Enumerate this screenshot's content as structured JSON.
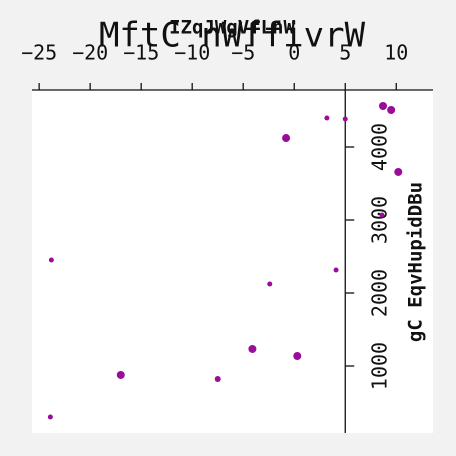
{
  "chart_data": {
    "type": "scatter",
    "title": "MftC nWffivrW",
    "x_label": "IZqJWgVfLnW",
    "y_label": "gC EqvHupidDBu",
    "x": [
      8.7,
      9.5,
      3.2,
      5.0,
      -0.8,
      10.2,
      8.6,
      -23.8,
      4.1,
      -2.4,
      -4.1,
      0.3,
      -17.0,
      -7.5,
      -23.9
    ],
    "y": [
      4562,
      4507,
      4397,
      4384,
      4123,
      3658,
      3068,
      2452,
      2315,
      2123,
      1233,
      1137,
      877,
      822,
      301
    ],
    "sizes": [
      4,
      4,
      2.5,
      2.5,
      4,
      4,
      2.5,
      2.5,
      2.5,
      2.5,
      4,
      4,
      4,
      3,
      2.5
    ],
    "color": "#9a0d9a",
    "xlim": [
      -25.7,
      13.6
    ],
    "ylim": [
      82,
      4781
    ],
    "xticks": [
      {
        "value": -25,
        "label": "−25"
      },
      {
        "value": -20,
        "label": "−20"
      },
      {
        "value": -15,
        "label": "−15"
      },
      {
        "value": -10,
        "label": "−10"
      },
      {
        "value": -5,
        "label": "−5"
      },
      0,
      5,
      10
    ],
    "yticks": [
      1000,
      2000,
      3000,
      4000
    ],
    "x_axis_position": "top",
    "y_spine_x": 5
  }
}
